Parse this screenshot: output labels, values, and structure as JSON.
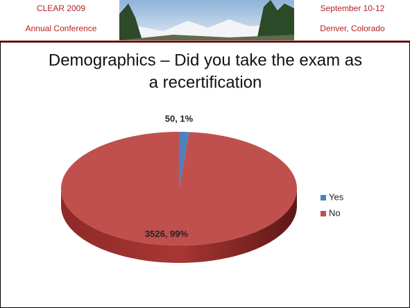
{
  "header": {
    "left_line1": "CLEAR 2009",
    "left_line2": "Annual Conference",
    "right_line1": "September 10-12",
    "right_line2": "Denver, Colorado"
  },
  "chart_data": {
    "type": "pie",
    "title_line1": "Demographics – Did you take the exam as",
    "title_line2": "a recertification",
    "categories": [
      "Yes",
      "No"
    ],
    "values": [
      50,
      3526
    ],
    "value_labels": [
      "50, 1%",
      "3526, 99%"
    ],
    "colors": [
      "#4f81bd",
      "#c0504d"
    ],
    "legend": "right"
  }
}
